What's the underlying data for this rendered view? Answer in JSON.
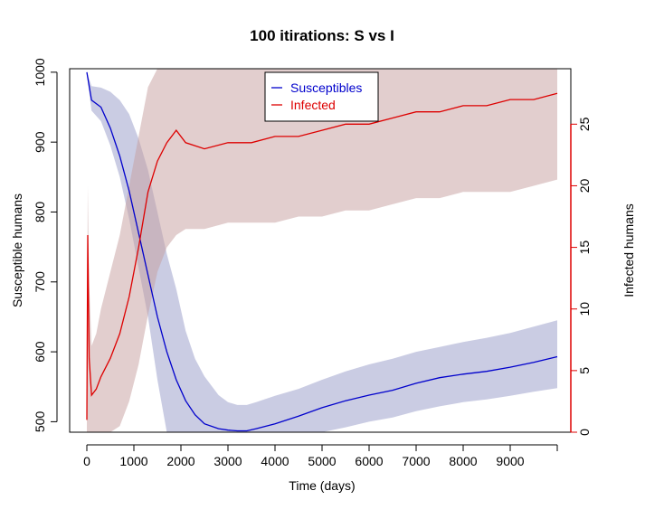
{
  "chart_data": {
    "type": "line",
    "title": "100  itirations: S vs I",
    "xlabel": "Time (days)",
    "ylabel": "Susceptible humans",
    "y2label": "Infected humans",
    "xlim": [
      0,
      10000
    ],
    "ylim": [
      485,
      1005
    ],
    "y2lim": [
      0,
      29.5
    ],
    "x_ticks": [
      0,
      1000,
      2000,
      3000,
      4000,
      5000,
      6000,
      7000,
      8000,
      9000
    ],
    "y_ticks": [
      500,
      600,
      700,
      800,
      900,
      1000
    ],
    "y2_ticks": [
      0,
      5,
      10,
      15,
      20,
      25
    ],
    "legend_position": "top-center",
    "colors": {
      "susceptible": "#0000cc",
      "infected": "#dd0000",
      "susceptible_band": "#9fa3cc",
      "infected_band": "#c69e9e",
      "right_axis": "#dd0000"
    },
    "series": [
      {
        "name": "Susceptibles",
        "axis": "left",
        "x": [
          0,
          100,
          300,
          500,
          700,
          900,
          1100,
          1300,
          1500,
          1700,
          1900,
          2100,
          2300,
          2500,
          2800,
          3000,
          3200,
          3400,
          3600,
          4000,
          4500,
          5000,
          5500,
          6000,
          6500,
          7000,
          7500,
          8000,
          8500,
          9000,
          9500,
          10000
        ],
        "values": [
          1000,
          960,
          950,
          920,
          880,
          830,
          770,
          710,
          650,
          600,
          560,
          530,
          510,
          497,
          490,
          488,
          487,
          487,
          490,
          497,
          508,
          520,
          530,
          538,
          545,
          555,
          563,
          568,
          572,
          578,
          585,
          593
        ],
        "band_low": [
          996,
          945,
          930,
          895,
          850,
          790,
          720,
          650,
          560,
          480,
          440,
          420,
          420,
          430,
          440,
          448,
          450,
          452,
          455,
          460,
          472,
          482,
          492,
          500,
          506,
          515,
          522,
          528,
          532,
          537,
          543,
          548
        ],
        "band_high": [
          1000,
          980,
          978,
          972,
          960,
          940,
          905,
          860,
          800,
          740,
          690,
          630,
          590,
          565,
          538,
          528,
          524,
          524,
          528,
          537,
          547,
          560,
          572,
          582,
          590,
          600,
          607,
          614,
          620,
          627,
          636,
          645
        ]
      },
      {
        "name": "Infected",
        "axis": "right",
        "x": [
          0,
          20,
          50,
          100,
          200,
          300,
          500,
          700,
          900,
          1100,
          1300,
          1500,
          1700,
          1900,
          2100,
          2500,
          3000,
          3500,
          4000,
          4500,
          5000,
          5500,
          6000,
          6500,
          7000,
          7500,
          8000,
          8500,
          9000,
          9500,
          10000
        ],
        "values": [
          1,
          16,
          6,
          3,
          3.5,
          4.5,
          6,
          8,
          11,
          15,
          19.5,
          22,
          23.5,
          24.5,
          23.5,
          23,
          23.5,
          23.5,
          24,
          24,
          24.5,
          25,
          25,
          25.5,
          26,
          26,
          26.5,
          26.5,
          27,
          27,
          27.5
        ],
        "band_low": [
          0,
          0,
          0,
          0,
          0,
          0,
          0,
          0.5,
          2.5,
          5.5,
          9.5,
          13,
          15,
          16,
          16.5,
          16.5,
          17,
          17,
          17,
          17.5,
          17.5,
          18,
          18,
          18.5,
          19,
          19,
          19.5,
          19.5,
          19.5,
          20,
          20.5
        ],
        "band_high": [
          3,
          20,
          12,
          7,
          8,
          10,
          13,
          16,
          20,
          24,
          28,
          29.5,
          29.5,
          29.5,
          29.5,
          29.5,
          29.5,
          29.5,
          29.5,
          29.5,
          29.5,
          29.5,
          29.5,
          29.5,
          29.5,
          29.5,
          29.5,
          29.5,
          29.5,
          29.5,
          29.5
        ]
      }
    ]
  }
}
